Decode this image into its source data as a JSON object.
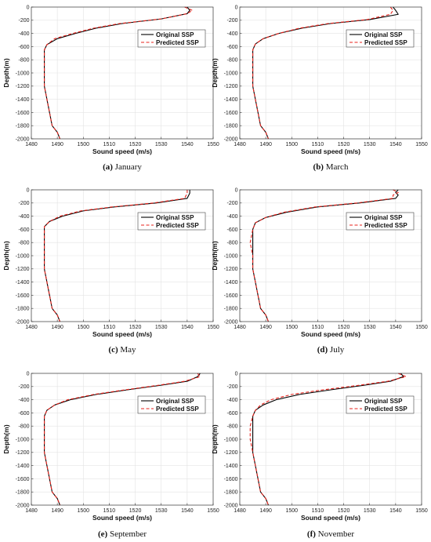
{
  "chart_data": [
    {
      "type": "line",
      "caption_letter": "(a)",
      "caption_month": "January",
      "xlabel": "Sound speed (m/s)",
      "ylabel": "Depth(m)",
      "xlim": [
        1480,
        1550
      ],
      "ylim": [
        -2000,
        0
      ],
      "xticks": [
        1480,
        1490,
        1500,
        1510,
        1520,
        1530,
        1540,
        1550
      ],
      "yticks": [
        0,
        -200,
        -400,
        -600,
        -800,
        -1000,
        -1200,
        -1400,
        -1600,
        -1800,
        -2000
      ],
      "grid": true,
      "legend_position": "top-right",
      "series": [
        {
          "name": "Original SSP",
          "color": "#000000",
          "style": "solid",
          "x": [
            1540,
            1541,
            1540,
            1530,
            1515,
            1505,
            1497,
            1490,
            1486,
            1485,
            1485,
            1485,
            1485,
            1486,
            1487,
            1488,
            1490,
            1491
          ],
          "y": [
            0,
            -50,
            -100,
            -180,
            -250,
            -320,
            -400,
            -480,
            -570,
            -650,
            -800,
            -1000,
            -1200,
            -1400,
            -1600,
            -1800,
            -1900,
            -2000
          ]
        },
        {
          "name": "Predicted SSP",
          "color": "#e8231c",
          "style": "dashed",
          "x": [
            1539,
            1542,
            1540,
            1530,
            1514,
            1504,
            1496,
            1489,
            1486,
            1485,
            1485,
            1485,
            1485,
            1486,
            1487,
            1488,
            1490,
            1491
          ],
          "y": [
            0,
            -50,
            -100,
            -180,
            -250,
            -320,
            -400,
            -480,
            -570,
            -650,
            -800,
            -1000,
            -1200,
            -1400,
            -1600,
            -1800,
            -1900,
            -2000
          ]
        }
      ]
    },
    {
      "type": "line",
      "caption_letter": "(b)",
      "caption_month": "March",
      "xlabel": "Sound speed (m/s)",
      "ylabel": "Depth(m)",
      "xlim": [
        1480,
        1550
      ],
      "ylim": [
        -2000,
        0
      ],
      "xticks": [
        1480,
        1490,
        1500,
        1510,
        1520,
        1530,
        1540,
        1550
      ],
      "yticks": [
        0,
        -200,
        -400,
        -600,
        -800,
        -1000,
        -1200,
        -1400,
        -1600,
        -1800,
        -2000
      ],
      "grid": true,
      "legend_position": "top-right",
      "series": [
        {
          "name": "Original SSP",
          "color": "#000000",
          "style": "solid",
          "x": [
            1539,
            1540,
            1541,
            1530,
            1515,
            1504,
            1495,
            1489,
            1486,
            1485,
            1485,
            1485,
            1485,
            1486,
            1487,
            1488,
            1490,
            1491
          ],
          "y": [
            0,
            -50,
            -110,
            -190,
            -250,
            -320,
            -400,
            -480,
            -560,
            -650,
            -800,
            -1000,
            -1200,
            -1400,
            -1600,
            -1800,
            -1900,
            -2000
          ]
        },
        {
          "name": "Predicted SSP",
          "color": "#e8231c",
          "style": "dashed",
          "x": [
            1538,
            1539,
            1538,
            1529,
            1514,
            1503,
            1495,
            1489,
            1486,
            1485,
            1485,
            1485,
            1485,
            1486,
            1487,
            1488,
            1490,
            1491
          ],
          "y": [
            0,
            -50,
            -110,
            -190,
            -250,
            -320,
            -400,
            -480,
            -560,
            -650,
            -800,
            -1000,
            -1200,
            -1400,
            -1600,
            -1800,
            -1900,
            -2000
          ]
        }
      ]
    },
    {
      "type": "line",
      "caption_letter": "(c)",
      "caption_month": "May",
      "xlabel": "Sound speed (m/s)",
      "ylabel": "Depth(m)",
      "xlim": [
        1480,
        1550
      ],
      "ylim": [
        -2000,
        0
      ],
      "xticks": [
        1480,
        1490,
        1500,
        1510,
        1520,
        1530,
        1540,
        1550
      ],
      "yticks": [
        0,
        -200,
        -400,
        -600,
        -800,
        -1000,
        -1200,
        -1400,
        -1600,
        -1800,
        -2000
      ],
      "grid": true,
      "legend_position": "top-right",
      "series": [
        {
          "name": "Original SSP",
          "color": "#000000",
          "style": "solid",
          "x": [
            1541,
            1541,
            1540,
            1528,
            1512,
            1500,
            1492,
            1487,
            1485,
            1485,
            1485,
            1485,
            1485,
            1486,
            1487,
            1488,
            1490,
            1491
          ],
          "y": [
            0,
            -50,
            -130,
            -200,
            -260,
            -320,
            -400,
            -480,
            -560,
            -650,
            -800,
            -1000,
            -1200,
            -1400,
            -1600,
            -1800,
            -1900,
            -2000
          ]
        },
        {
          "name": "Predicted SSP",
          "color": "#e8231c",
          "style": "dashed",
          "x": [
            1540,
            1540,
            1539,
            1527,
            1511,
            1499,
            1491,
            1487,
            1485,
            1485,
            1485,
            1485,
            1485,
            1486,
            1487,
            1488,
            1490,
            1491
          ],
          "y": [
            0,
            -50,
            -130,
            -200,
            -260,
            -320,
            -400,
            -480,
            -560,
            -650,
            -800,
            -1000,
            -1200,
            -1400,
            -1600,
            -1800,
            -1900,
            -2000
          ]
        }
      ]
    },
    {
      "type": "line",
      "caption_letter": "(d)",
      "caption_month": "July",
      "xlabel": "Sound speed (m/s)",
      "ylabel": "Depth(m)",
      "xlim": [
        1480,
        1550
      ],
      "ylim": [
        -2000,
        0
      ],
      "xticks": [
        1480,
        1490,
        1500,
        1510,
        1520,
        1530,
        1540,
        1550
      ],
      "yticks": [
        0,
        -200,
        -400,
        -600,
        -800,
        -1000,
        -1200,
        -1400,
        -1600,
        -1800,
        -2000
      ],
      "grid": true,
      "legend_position": "top-right",
      "series": [
        {
          "name": "Original SSP",
          "color": "#000000",
          "style": "solid",
          "x": [
            1541,
            1540,
            1541,
            1540,
            1526,
            1510,
            1498,
            1490,
            1486,
            1485,
            1485,
            1485,
            1485,
            1486,
            1487,
            1488,
            1490,
            1491
          ],
          "y": [
            0,
            -40,
            -80,
            -130,
            -200,
            -260,
            -340,
            -420,
            -500,
            -600,
            -800,
            -1000,
            -1200,
            -1400,
            -1600,
            -1800,
            -1900,
            -2000
          ]
        },
        {
          "name": "Predicted SSP",
          "color": "#e8231c",
          "style": "dashed",
          "x": [
            1539,
            1541,
            1539,
            1539,
            1525,
            1509,
            1497,
            1490,
            1486,
            1485,
            1484,
            1485,
            1485,
            1486,
            1487,
            1488,
            1490,
            1491
          ],
          "y": [
            0,
            -40,
            -80,
            -130,
            -200,
            -260,
            -340,
            -420,
            -500,
            -600,
            -800,
            -1000,
            -1200,
            -1400,
            -1600,
            -1800,
            -1900,
            -2000
          ]
        }
      ]
    },
    {
      "type": "line",
      "caption_letter": "(e)",
      "caption_month": "September",
      "xlabel": "Sound speed (m/s)",
      "ylabel": "Depth(m)",
      "xlim": [
        1480,
        1550
      ],
      "ylim": [
        -2000,
        0
      ],
      "xticks": [
        1480,
        1490,
        1500,
        1510,
        1520,
        1530,
        1540,
        1550
      ],
      "yticks": [
        0,
        -200,
        -400,
        -600,
        -800,
        -1000,
        -1200,
        -1400,
        -1600,
        -1800,
        -2000
      ],
      "grid": true,
      "legend_position": "top-right",
      "series": [
        {
          "name": "Original SSP",
          "color": "#000000",
          "style": "solid",
          "x": [
            1545,
            1544,
            1540,
            1530,
            1517,
            1505,
            1495,
            1489,
            1486,
            1485,
            1485,
            1485,
            1485,
            1486,
            1487,
            1488,
            1490,
            1491
          ],
          "y": [
            0,
            -50,
            -120,
            -180,
            -250,
            -320,
            -400,
            -480,
            -560,
            -650,
            -800,
            -1000,
            -1200,
            -1400,
            -1600,
            -1800,
            -1900,
            -2000
          ]
        },
        {
          "name": "Predicted SSP",
          "color": "#e8231c",
          "style": "dashed",
          "x": [
            1544,
            1545,
            1539,
            1529,
            1516,
            1504,
            1494,
            1489,
            1486,
            1485,
            1485,
            1485,
            1485,
            1486,
            1487,
            1488,
            1490,
            1491
          ],
          "y": [
            0,
            -50,
            -120,
            -180,
            -250,
            -320,
            -400,
            -480,
            -560,
            -650,
            -800,
            -1000,
            -1200,
            -1400,
            -1600,
            -1800,
            -1900,
            -2000
          ]
        }
      ]
    },
    {
      "type": "line",
      "caption_letter": "(f)",
      "caption_month": "November",
      "xlabel": "Sound speed (m/s)",
      "ylabel": "Depth(m)",
      "xlim": [
        1480,
        1550
      ],
      "ylim": [
        -2000,
        0
      ],
      "xticks": [
        1480,
        1490,
        1500,
        1510,
        1520,
        1530,
        1540,
        1550
      ],
      "yticks": [
        0,
        -200,
        -400,
        -600,
        -800,
        -1000,
        -1200,
        -1400,
        -1600,
        -1800,
        -2000
      ],
      "grid": true,
      "legend_position": "top-right",
      "series": [
        {
          "name": "Original SSP",
          "color": "#000000",
          "style": "solid",
          "x": [
            1542,
            1543,
            1538,
            1528,
            1515,
            1503,
            1494,
            1489,
            1486,
            1485,
            1485,
            1485,
            1485,
            1486,
            1487,
            1488,
            1490,
            1491
          ],
          "y": [
            0,
            -50,
            -120,
            -180,
            -250,
            -320,
            -400,
            -480,
            -560,
            -650,
            -800,
            -1000,
            -1200,
            -1400,
            -1600,
            -1800,
            -1900,
            -2000
          ]
        },
        {
          "name": "Predicted SSP",
          "color": "#e8231c",
          "style": "dashed",
          "x": [
            1541,
            1544,
            1537,
            1526,
            1512,
            1500,
            1492,
            1488,
            1486,
            1485,
            1484,
            1484,
            1485,
            1486,
            1487,
            1488,
            1490,
            1491
          ],
          "y": [
            0,
            -50,
            -120,
            -180,
            -250,
            -320,
            -400,
            -480,
            -560,
            -650,
            -800,
            -1000,
            -1200,
            -1400,
            -1600,
            -1800,
            -1900,
            -2000
          ]
        }
      ]
    }
  ]
}
